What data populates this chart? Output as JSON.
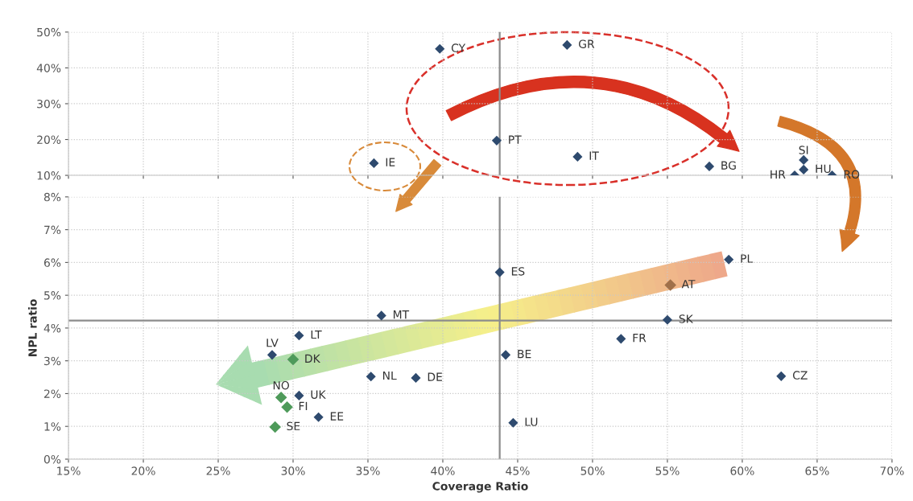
{
  "chart_data": [
    {
      "type": "scatter",
      "xlim": [
        15,
        70
      ],
      "xticks": [
        {
          "value": 15,
          "label": null
        },
        {
          "value": 20,
          "label": null
        },
        {
          "value": 25,
          "label": null
        },
        {
          "value": 30,
          "label": null
        },
        {
          "value": 35,
          "label": null
        },
        {
          "value": 40,
          "label": null
        },
        {
          "value": 45,
          "label": null
        },
        {
          "value": 50,
          "label": null
        },
        {
          "value": 55,
          "label": null
        },
        {
          "value": 60,
          "label": null
        },
        {
          "value": 65,
          "label": null
        },
        {
          "value": 70,
          "label": null
        }
      ],
      "ylim": [
        10,
        50
      ],
      "yticks": [
        {
          "value": 10,
          "label": "10%"
        },
        {
          "value": 20,
          "label": "20%"
        },
        {
          "value": 30,
          "label": "30%"
        },
        {
          "value": 40,
          "label": "40%"
        },
        {
          "value": 50,
          "label": "50%"
        }
      ],
      "tick_labels": "y",
      "grid": true,
      "marker": "diamond",
      "series": [
        {
          "color": "#2e4a6e",
          "x": [
            39.8,
            48.3,
            43.6,
            49.0,
            35.4,
            57.8,
            64.1,
            64.1,
            63.5,
            66.0
          ],
          "values": [
            45.3,
            46.4,
            19.7,
            15.2,
            13.4,
            12.5,
            14.3,
            11.6,
            10.0,
            10.0
          ]
        }
      ],
      "ref_lines": [
        {
          "axis": "x",
          "value": 43.8,
          "color": "#8c8c8c"
        }
      ],
      "annotations": [
        {
          "text": "CY",
          "x": 39.8,
          "y": 45.3
        },
        {
          "text": "GR",
          "x": 48.3,
          "y": 46.4
        },
        {
          "text": "PT",
          "x": 43.6,
          "y": 19.7
        },
        {
          "text": "IT",
          "x": 49.0,
          "y": 15.2
        },
        {
          "text": "IE",
          "x": 35.4,
          "y": 13.4
        },
        {
          "text": "BG",
          "x": 57.8,
          "y": 12.5
        },
        {
          "text": "SI",
          "x": 64.1,
          "y": 14.3
        },
        {
          "text": "HU",
          "x": 64.1,
          "y": 11.6
        },
        {
          "text": "HR",
          "x": 63.5,
          "y": 10.0
        },
        {
          "text": "RO",
          "x": 66.0,
          "y": 10.0
        }
      ]
    },
    {
      "type": "scatter",
      "xlabel": "Coverage Ratio",
      "ylabel": "NPL ratio",
      "xlim": [
        15,
        70
      ],
      "xticks": [
        {
          "value": 15,
          "label": "15%"
        },
        {
          "value": 20,
          "label": "20%"
        },
        {
          "value": 25,
          "label": "25%"
        },
        {
          "value": 30,
          "label": "30%"
        },
        {
          "value": 35,
          "label": "35%"
        },
        {
          "value": 40,
          "label": "40%"
        },
        {
          "value": 45,
          "label": "45%"
        },
        {
          "value": 50,
          "label": "50%"
        },
        {
          "value": 55,
          "label": "55%"
        },
        {
          "value": 60,
          "label": "60%"
        },
        {
          "value": 65,
          "label": "65%"
        },
        {
          "value": 70,
          "label": "70%"
        }
      ],
      "ylim": [
        0,
        8
      ],
      "yticks": [
        {
          "value": 0,
          "label": "0%"
        },
        {
          "value": 1,
          "label": "1%"
        },
        {
          "value": 2,
          "label": "2%"
        },
        {
          "value": 3,
          "label": "3%"
        },
        {
          "value": 4,
          "label": "4%"
        },
        {
          "value": 5,
          "label": "5%"
        },
        {
          "value": 6,
          "label": "6%"
        },
        {
          "value": 7,
          "label": "7%"
        },
        {
          "value": 8,
          "label": "8%"
        }
      ],
      "grid": true,
      "marker": "diamond",
      "series": [
        {
          "color": "#2e4a6e",
          "x": [
            35.9,
            30.4,
            28.6,
            35.2,
            38.2,
            30.4,
            31.7,
            43.8,
            59.1,
            55.0,
            51.9,
            44.2,
            62.6,
            44.7
          ],
          "values": [
            4.38,
            3.77,
            3.18,
            2.52,
            2.48,
            1.94,
            1.28,
            5.7,
            6.09,
            4.25,
            3.67,
            3.18,
            2.53,
            1.11
          ]
        },
        {
          "color": "#4e9a5a",
          "x": [
            30.0,
            29.2,
            29.6,
            28.8
          ],
          "values": [
            3.04,
            1.88,
            1.59,
            0.98
          ]
        },
        {
          "color": "#a0704a",
          "x": [
            55.2
          ],
          "values": [
            5.31
          ]
        }
      ],
      "ref_lines": [
        {
          "axis": "x",
          "value": 43.8,
          "color": "#8c8c8c"
        },
        {
          "axis": "y",
          "value": 4.23,
          "color": "#8c8c8c"
        }
      ],
      "annotations": [
        {
          "text": "MT",
          "x": 35.9,
          "y": 4.38
        },
        {
          "text": "LT",
          "x": 30.4,
          "y": 3.77
        },
        {
          "text": "LV",
          "x": 28.6,
          "y": 3.18
        },
        {
          "text": "NL",
          "x": 35.2,
          "y": 2.52
        },
        {
          "text": "DE",
          "x": 38.2,
          "y": 2.48
        },
        {
          "text": "UK",
          "x": 30.4,
          "y": 1.94
        },
        {
          "text": "EE",
          "x": 31.7,
          "y": 1.28
        },
        {
          "text": "ES",
          "x": 43.8,
          "y": 5.7
        },
        {
          "text": "PL",
          "x": 59.1,
          "y": 6.09
        },
        {
          "text": "SK",
          "x": 55.0,
          "y": 4.25
        },
        {
          "text": "FR",
          "x": 51.9,
          "y": 3.67
        },
        {
          "text": "BE",
          "x": 44.2,
          "y": 3.18
        },
        {
          "text": "CZ",
          "x": 62.6,
          "y": 2.53
        },
        {
          "text": "LU",
          "x": 44.7,
          "y": 1.11
        },
        {
          "text": "DK",
          "x": 30.0,
          "y": 3.04
        },
        {
          "text": "NO",
          "x": 29.2,
          "y": 1.88
        },
        {
          "text": "FI",
          "x": 29.6,
          "y": 1.59
        },
        {
          "text": "SE",
          "x": 28.8,
          "y": 0.98
        },
        {
          "text": "AT",
          "x": 55.2,
          "y": 5.31
        }
      ]
    }
  ]
}
